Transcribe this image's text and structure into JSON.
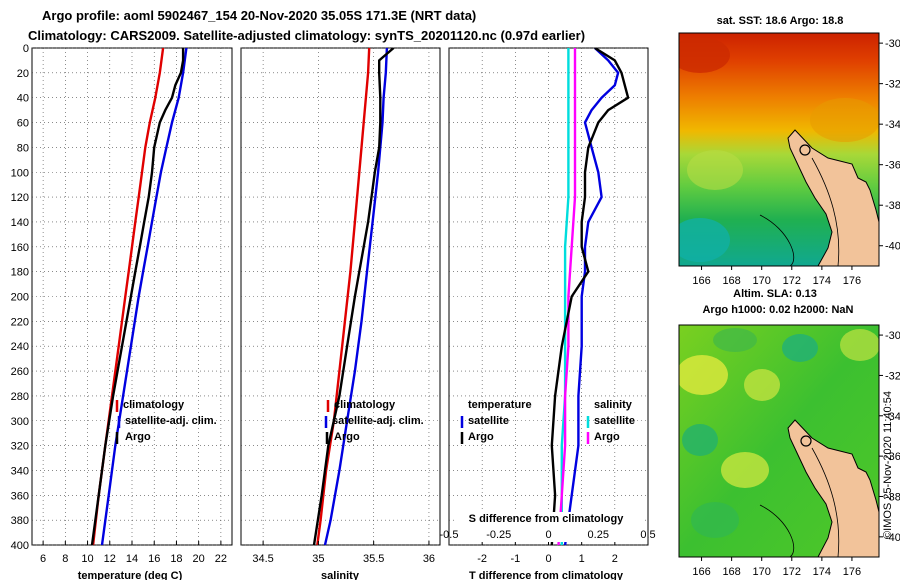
{
  "title": {
    "line1": "Argo profile: aoml 5902467_154 20-Nov-2020 35.05S 171.3E (NRT data)",
    "line2": "Climatology: CARS2009. Satellite-adjusted climatology: synTS_20201120.nc (0.97d earlier)"
  },
  "colors": {
    "argo": "#000000",
    "climatology": "#e00000",
    "satellite": "#0000e0",
    "sat_temp": "#00dddd",
    "sat_sal": "#ff00ff",
    "land": "#f2c39a"
  },
  "chart_data": [
    {
      "type": "line",
      "id": "temperature",
      "xlabel": "temperature (deg C)",
      "xlim": [
        5,
        23
      ],
      "xticks": [
        6,
        8,
        10,
        12,
        14,
        16,
        18,
        20,
        22
      ],
      "ylim": [
        0,
        400
      ],
      "yticks": [
        0,
        20,
        40,
        60,
        80,
        100,
        120,
        140,
        160,
        180,
        200,
        220,
        240,
        260,
        280,
        300,
        320,
        340,
        360,
        380,
        400
      ],
      "grid": true,
      "legend_labels": [
        "climatology",
        "satellite-adj. clim.",
        "Argo"
      ],
      "series": [
        {
          "name": "climatology",
          "color": "#e00000",
          "depth": [
            0,
            20,
            40,
            60,
            80,
            100,
            120,
            140,
            160,
            180,
            200,
            240,
            280,
            320,
            360,
            400
          ],
          "values": [
            16.8,
            16.5,
            16.1,
            15.6,
            15.2,
            14.9,
            14.6,
            14.3,
            14.0,
            13.7,
            13.4,
            12.8,
            12.2,
            11.6,
            11.0,
            10.5
          ]
        },
        {
          "name": "satellite-adj. clim.",
          "color": "#0000e0",
          "depth": [
            0,
            20,
            40,
            60,
            80,
            100,
            120,
            140,
            160,
            180,
            200,
            240,
            280,
            320,
            360,
            400
          ],
          "values": [
            18.9,
            18.6,
            18.2,
            17.6,
            17.1,
            16.6,
            16.2,
            15.8,
            15.4,
            15.0,
            14.6,
            13.9,
            13.2,
            12.5,
            11.9,
            11.3
          ]
        },
        {
          "name": "Argo",
          "color": "#000000",
          "depth": [
            0,
            10,
            20,
            30,
            40,
            50,
            60,
            80,
            100,
            120,
            140,
            160,
            180,
            200,
            240,
            280,
            320,
            360,
            400
          ],
          "values": [
            18.6,
            18.6,
            18.4,
            17.9,
            17.6,
            17.0,
            16.5,
            16.0,
            15.8,
            15.5,
            15.1,
            14.7,
            14.3,
            13.9,
            13.1,
            12.3,
            11.6,
            11.0,
            10.4
          ]
        }
      ]
    },
    {
      "type": "line",
      "id": "salinity",
      "xlabel": "salinity",
      "xlim": [
        34.3,
        36.1
      ],
      "xticks": [
        34.5,
        35,
        35.5,
        36
      ],
      "xticklabels": [
        "34.5",
        "35",
        "35.5",
        "36"
      ],
      "ylim": [
        0,
        400
      ],
      "grid": true,
      "legend_labels": [
        "climatology",
        "satellite-adj. clim.",
        "Argo"
      ],
      "series": [
        {
          "name": "climatology",
          "color": "#e00000",
          "depth": [
            0,
            20,
            40,
            60,
            80,
            100,
            140,
            180,
            220,
            260,
            300,
            340,
            380,
            400
          ],
          "values": [
            35.46,
            35.45,
            35.43,
            35.41,
            35.39,
            35.37,
            35.33,
            35.29,
            35.24,
            35.19,
            35.14,
            35.07,
            35.02,
            34.99
          ]
        },
        {
          "name": "satellite-adj. clim.",
          "color": "#0000e0",
          "depth": [
            0,
            20,
            40,
            60,
            80,
            100,
            140,
            180,
            220,
            260,
            300,
            340,
            380,
            400
          ],
          "values": [
            35.62,
            35.61,
            35.59,
            35.58,
            35.56,
            35.54,
            35.49,
            35.44,
            35.39,
            35.33,
            35.26,
            35.19,
            35.11,
            35.06
          ]
        },
        {
          "name": "Argo",
          "color": "#000000",
          "depth": [
            0,
            10,
            20,
            40,
            60,
            80,
            100,
            120,
            140,
            160,
            180,
            200,
            240,
            280,
            320,
            360,
            400
          ],
          "values": [
            35.68,
            35.55,
            35.55,
            35.56,
            35.56,
            35.55,
            35.51,
            35.48,
            35.45,
            35.41,
            35.37,
            35.33,
            35.26,
            35.19,
            35.09,
            35.03,
            34.96
          ]
        }
      ]
    },
    {
      "type": "line",
      "id": "difference",
      "xlabel": "T difference from climatology",
      "xlim": [
        -3,
        3
      ],
      "xticks": [
        -2,
        -1,
        0,
        1,
        2
      ],
      "secondary_axis_label": "S difference from climatology",
      "secondary_xticks": [
        -0.5,
        -0.25,
        0,
        0.25,
        0.5
      ],
      "secondary_xticklabels": [
        "-0.5",
        "-0.25",
        "0",
        "0.25",
        "0.5"
      ],
      "ylim": [
        0,
        400
      ],
      "grid": true,
      "legend_temperature_heading": "temperature",
      "legend_salinity_heading": "salinity",
      "legend_labels": [
        "satellite",
        "Argo",
        "satellite",
        "Argo"
      ],
      "series": [
        {
          "name": "temperature satellite",
          "color": "#00dddd",
          "depth": [
            0,
            40,
            80,
            120,
            160,
            200,
            240,
            280,
            320,
            360,
            400
          ],
          "values": [
            0.6,
            0.6,
            0.6,
            0.6,
            0.5,
            0.5,
            0.5,
            0.5,
            0.4,
            0.4,
            0.4
          ]
        },
        {
          "name": "salinity satellite",
          "color": "#ff00ff",
          "depth": [
            0,
            40,
            80,
            120,
            160,
            200,
            240,
            280,
            320,
            360,
            400
          ],
          "values": [
            0.8,
            0.8,
            0.8,
            0.8,
            0.7,
            0.6,
            0.6,
            0.5,
            0.5,
            0.4,
            0.3
          ]
        },
        {
          "name": "temperature Argo",
          "color": "#0000e0",
          "depth": [
            0,
            10,
            20,
            30,
            40,
            50,
            60,
            80,
            100,
            120,
            140,
            160,
            180,
            200,
            240,
            280,
            320,
            360,
            400
          ],
          "values": [
            1.4,
            1.8,
            2.1,
            2.0,
            1.6,
            1.3,
            1.1,
            1.3,
            1.5,
            1.6,
            1.2,
            1.1,
            1.1,
            1.0,
            1.0,
            0.9,
            0.9,
            0.7,
            0.5
          ]
        },
        {
          "name": "salinity Argo",
          "color": "#000000",
          "depth": [
            0,
            10,
            20,
            30,
            40,
            50,
            60,
            80,
            100,
            120,
            140,
            160,
            180,
            200,
            240,
            280,
            320,
            360,
            400
          ],
          "values": [
            1.4,
            2.0,
            2.2,
            2.3,
            2.4,
            1.8,
            1.5,
            1.2,
            1.1,
            1.1,
            1.0,
            1.0,
            1.2,
            0.7,
            0.4,
            0.2,
            0.1,
            0.2,
            0.1
          ]
        }
      ]
    },
    {
      "type": "heatmap",
      "id": "sst_map",
      "title": "sat. SST: 18.6 Argo: 18.8",
      "xlim": [
        164.5,
        177.8
      ],
      "ylim": [
        -41,
        -29.5
      ],
      "xticks": [
        166,
        168,
        170,
        172,
        174,
        176
      ],
      "yticks": [
        -30,
        -32,
        -34,
        -36,
        -38,
        -40
      ],
      "profile_location": [
        171.3,
        -35.05
      ]
    },
    {
      "type": "heatmap",
      "id": "sla_map",
      "title_line1": "Altim. SLA: 0.13",
      "title_line2": "Argo h1000: 0.02 h2000: NaN",
      "xlim": [
        164.5,
        177.8
      ],
      "ylim": [
        -41,
        -29.5
      ],
      "xticks": [
        166,
        168,
        170,
        172,
        174,
        176
      ],
      "yticks": [
        -30,
        -32,
        -34,
        -36,
        -38,
        -40
      ],
      "profile_location": [
        171.3,
        -35.05
      ]
    }
  ],
  "stamp": "©IMOS 25-Nov-2020 11:40:54"
}
